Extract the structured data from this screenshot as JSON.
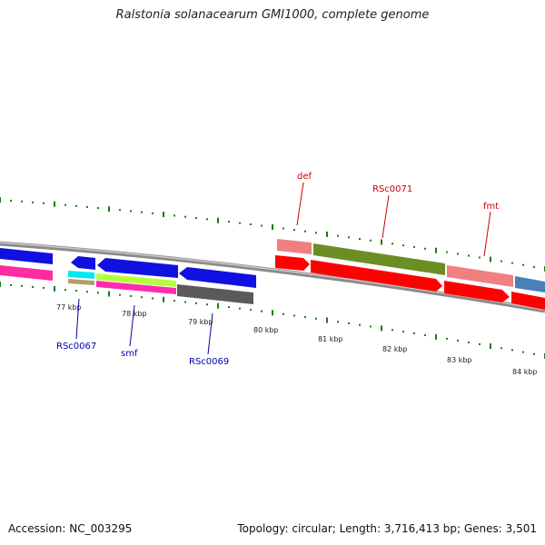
{
  "title": "Ralstonia solanacearum GMI1000, complete genome",
  "accession": "Accession: NC_003295",
  "summary": "Topology: circular; Length: 3,716,413 bp; Genes: 3,501",
  "colors": {
    "backbone": "#8a8a8a",
    "tick": "#1a7a1a",
    "label_reverse": "#0000aa",
    "label_forward": "#cc0000"
  },
  "ticks": [
    {
      "label": "77 kbp"
    },
    {
      "label": "78 kbp"
    },
    {
      "label": "79 kbp"
    },
    {
      "label": "80 kbp"
    },
    {
      "label": "81 kbp"
    },
    {
      "label": "82 kbp"
    },
    {
      "label": "83 kbp"
    },
    {
      "label": "84 kbp"
    }
  ],
  "gene_labels": [
    {
      "text": "RSc0067",
      "strand": "reverse"
    },
    {
      "text": "smf",
      "strand": "reverse"
    },
    {
      "text": "RSc0069",
      "strand": "reverse"
    },
    {
      "text": "def",
      "strand": "forward"
    },
    {
      "text": "RSc0071",
      "strand": "forward"
    },
    {
      "text": "fmt",
      "strand": "forward"
    }
  ]
}
